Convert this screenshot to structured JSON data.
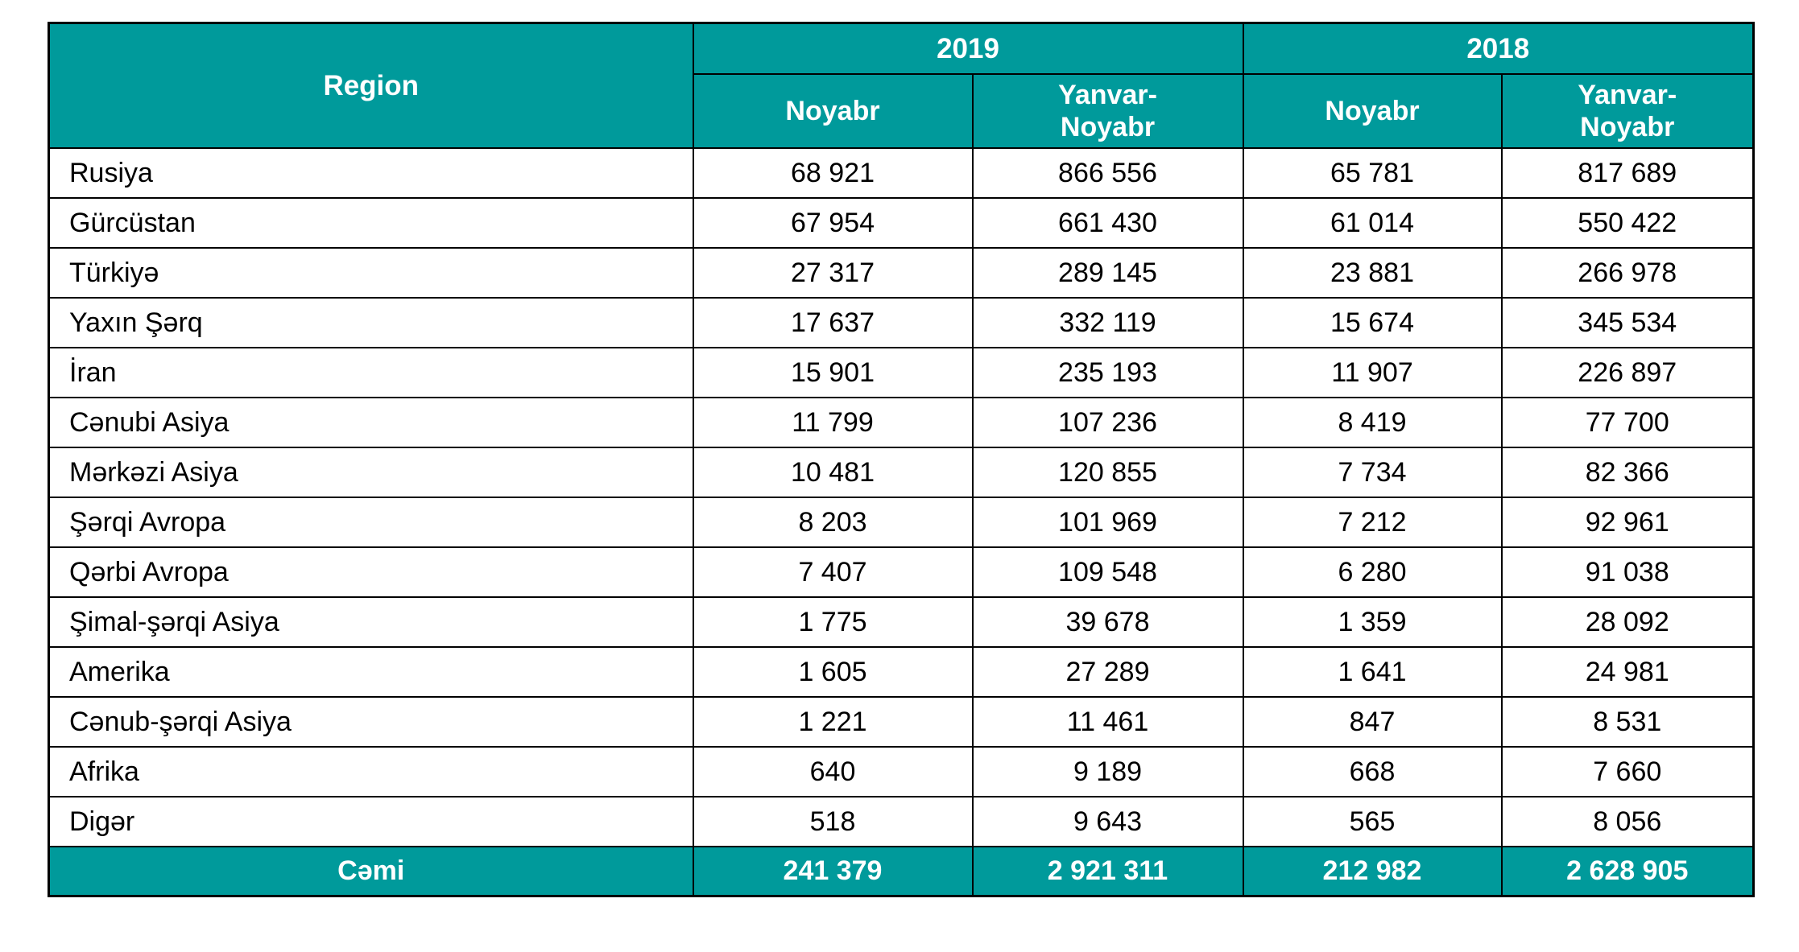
{
  "colors": {
    "header_teal": "#009A9B",
    "border_black": "#000000",
    "header_text": "#FFFFFF",
    "body_text": "#000000"
  },
  "table": {
    "region_header": "Region",
    "year_groups": [
      {
        "year": "2019",
        "subcolumns": [
          "Noyabr",
          "Yanvar-Noyabr"
        ]
      },
      {
        "year": "2018",
        "subcolumns": [
          "Noyabr",
          "Yanvar-Noyabr"
        ]
      }
    ],
    "rows": [
      {
        "region": "Rusiya",
        "values": [
          "68 921",
          "866 556",
          "65 781",
          "817 689"
        ]
      },
      {
        "region": "Gürcüstan",
        "values": [
          "67 954",
          "661 430",
          "61 014",
          "550 422"
        ]
      },
      {
        "region": "Türkiyə",
        "values": [
          "27 317",
          "289 145",
          "23 881",
          "266 978"
        ]
      },
      {
        "region": "Yaxın Şərq",
        "values": [
          "17 637",
          "332 119",
          "15 674",
          "345 534"
        ]
      },
      {
        "region": "İran",
        "values": [
          "15 901",
          "235 193",
          "11 907",
          "226 897"
        ]
      },
      {
        "region": "Cənubi Asiya",
        "values": [
          "11 799",
          "107 236",
          "8 419",
          "77 700"
        ]
      },
      {
        "region": "Mərkəzi Asiya",
        "values": [
          "10 481",
          "120 855",
          "7 734",
          "82 366"
        ]
      },
      {
        "region": "Şərqi Avropa",
        "values": [
          "8 203",
          "101 969",
          "7 212",
          "92 961"
        ]
      },
      {
        "region": "Qərbi Avropa",
        "values": [
          "7 407",
          "109 548",
          "6 280",
          "91 038"
        ]
      },
      {
        "region": "Şimal-şərqi Asiya",
        "values": [
          "1 775",
          "39 678",
          "1 359",
          "28 092"
        ]
      },
      {
        "region": "Amerika",
        "values": [
          "1 605",
          "27 289",
          "1 641",
          "24 981"
        ]
      },
      {
        "region": "Cənub-şərqi Asiya",
        "values": [
          "1 221",
          "11 461",
          "847",
          "8 531"
        ]
      },
      {
        "region": "Afrika",
        "values": [
          "640",
          "9 189",
          "668",
          "7 660"
        ]
      },
      {
        "region": "Digər",
        "values": [
          "518",
          "9 643",
          "565",
          "8 056"
        ]
      }
    ],
    "footer": {
      "label": "Cəmi",
      "values": [
        "241 379",
        "2 921 311",
        "212 982",
        "2 628 905"
      ]
    }
  },
  "chart_data": {
    "type": "table",
    "title": "",
    "columns": [
      "Region",
      "2019 Noyabr",
      "2019 Yanvar-Noyabr",
      "2018 Noyabr",
      "2018 Yanvar-Noyabr"
    ],
    "rows": [
      [
        "Rusiya",
        68921,
        866556,
        65781,
        817689
      ],
      [
        "Gürcüstan",
        67954,
        661430,
        61014,
        550422
      ],
      [
        "Türkiyə",
        27317,
        289145,
        23881,
        266978
      ],
      [
        "Yaxın Şərq",
        17637,
        332119,
        15674,
        345534
      ],
      [
        "İran",
        15901,
        235193,
        11907,
        226897
      ],
      [
        "Cənubi Asiya",
        11799,
        107236,
        8419,
        77700
      ],
      [
        "Mərkəzi Asiya",
        10481,
        120855,
        7734,
        82366
      ],
      [
        "Şərqi Avropa",
        8203,
        101969,
        7212,
        92961
      ],
      [
        "Qərbi Avropa",
        7407,
        109548,
        6280,
        91038
      ],
      [
        "Şimal-şərqi Asiya",
        1775,
        39678,
        1359,
        28092
      ],
      [
        "Amerika",
        1605,
        27289,
        1641,
        24981
      ],
      [
        "Cənub-şərqi Asiya",
        1221,
        11461,
        847,
        8531
      ],
      [
        "Afrika",
        640,
        9189,
        668,
        7660
      ],
      [
        "Digər",
        518,
        9643,
        565,
        8056
      ]
    ],
    "footer_row": [
      "Cəmi",
      241379,
      2921311,
      212982,
      2628905
    ]
  }
}
